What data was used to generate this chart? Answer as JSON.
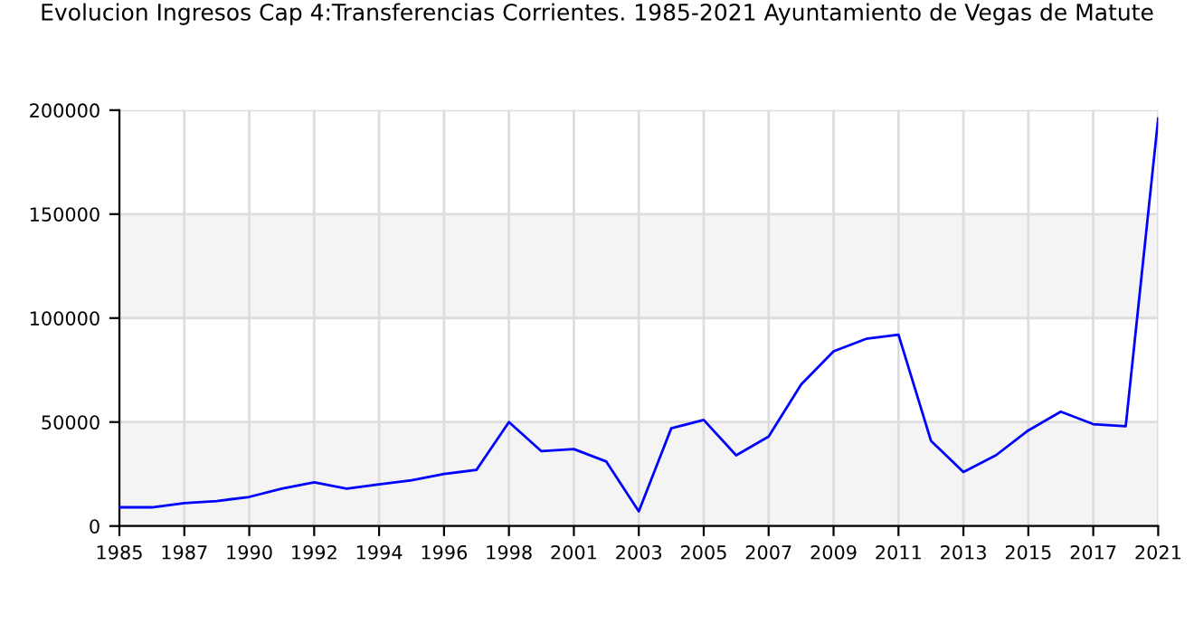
{
  "chart_data": {
    "type": "line",
    "title": "Evolucion Ingresos Cap 4:Transferencias Corrientes. 1985-2021 Ayuntamiento de Vegas de Matute",
    "categories": [
      "1985",
      null,
      "1987",
      null,
      "1990",
      null,
      "1992",
      null,
      "1994",
      null,
      "1996",
      null,
      "1998",
      null,
      "2001",
      null,
      "2003",
      null,
      "2005",
      null,
      "2007",
      null,
      "2009",
      null,
      "2011",
      null,
      "2013",
      null,
      "2015",
      null,
      "2017",
      null,
      "2021"
    ],
    "series": [
      {
        "color": "#0000ff",
        "values": [
          9000,
          9000,
          11000,
          12000,
          14000,
          18000,
          21000,
          18000,
          20000,
          22000,
          25000,
          27000,
          50000,
          36000,
          37000,
          31000,
          7000,
          47000,
          51000,
          34000,
          43000,
          68000,
          84000,
          90000,
          92000,
          41000,
          26000,
          34000,
          46000,
          55000,
          49000,
          48000,
          196000
        ]
      }
    ],
    "ylim": [
      0,
      200000
    ],
    "yticks": [
      0,
      50000,
      100000,
      150000,
      200000
    ],
    "grid": true,
    "marker": "none",
    "line_style": "solid",
    "bands": [
      {
        "axis": "y",
        "from": 0,
        "to": 50000,
        "color": "#f4f4f4"
      },
      {
        "axis": "y",
        "from": 100000,
        "to": 150000,
        "color": "#f4f4f4"
      }
    ]
  }
}
